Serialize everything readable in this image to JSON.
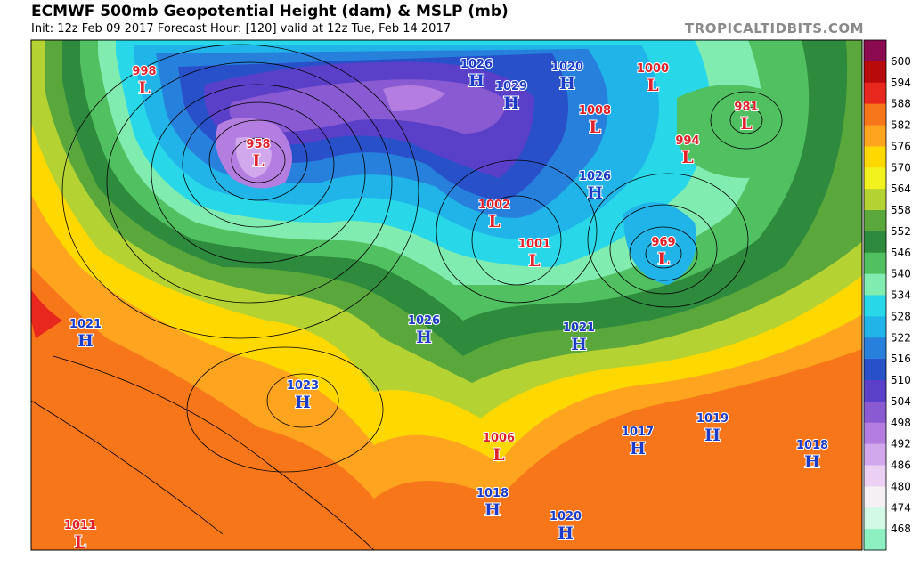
{
  "header": {
    "title": "ECMWF 500mb Geopotential Height (dam) & MSLP (mb)",
    "subtitle": "Init: 12z Feb 09 2017   Forecast Hour: [120]   valid at 12z Tue, Feb 14 2017",
    "source": "TROPICALTIDBITS.COM"
  },
  "colorbar": {
    "labels": [
      "600",
      "594",
      "588",
      "582",
      "576",
      "570",
      "564",
      "558",
      "552",
      "546",
      "540",
      "534",
      "528",
      "522",
      "516",
      "510",
      "504",
      "498",
      "492",
      "486",
      "480",
      "474",
      "468"
    ],
    "colors": [
      "#8c0a50",
      "#b80a0a",
      "#e8281e",
      "#f7761a",
      "#ffa41e",
      "#ffd800",
      "#f2f21e",
      "#b4d232",
      "#5aa83c",
      "#2e8a3c",
      "#50c060",
      "#80ecb0",
      "#28d8e8",
      "#20b4e8",
      "#2680dc",
      "#2850c8",
      "#5a40c8",
      "#8a5ad2",
      "#b47ee0",
      "#d2a8ec",
      "#ecd0f4",
      "#f4f0f4",
      "#d2f8e6",
      "#8cf0c0"
    ]
  },
  "centers": [
    {
      "value": "998",
      "type": "L"
    },
    {
      "value": "958",
      "type": "L"
    },
    {
      "value": "1026",
      "type": "H"
    },
    {
      "value": "1029",
      "type": "H"
    },
    {
      "value": "1020",
      "type": "H"
    },
    {
      "value": "1000",
      "type": "L"
    },
    {
      "value": "1008",
      "type": "L"
    },
    {
      "value": "981",
      "type": "L"
    },
    {
      "value": "994",
      "type": "L"
    },
    {
      "value": "1026",
      "type": "H"
    },
    {
      "value": "1002",
      "type": "L"
    },
    {
      "value": "1001",
      "type": "L"
    },
    {
      "value": "969",
      "type": "L"
    },
    {
      "value": "1021",
      "type": "H"
    },
    {
      "value": "1026",
      "type": "H"
    },
    {
      "value": "1021",
      "type": "H"
    },
    {
      "value": "1023",
      "type": "H"
    },
    {
      "value": "1006",
      "type": "L"
    },
    {
      "value": "1017",
      "type": "H"
    },
    {
      "value": "1019",
      "type": "H"
    },
    {
      "value": "1018",
      "type": "H"
    },
    {
      "value": "1018",
      "type": "H"
    },
    {
      "value": "1020",
      "type": "H"
    },
    {
      "value": "1011",
      "type": "L"
    }
  ]
}
